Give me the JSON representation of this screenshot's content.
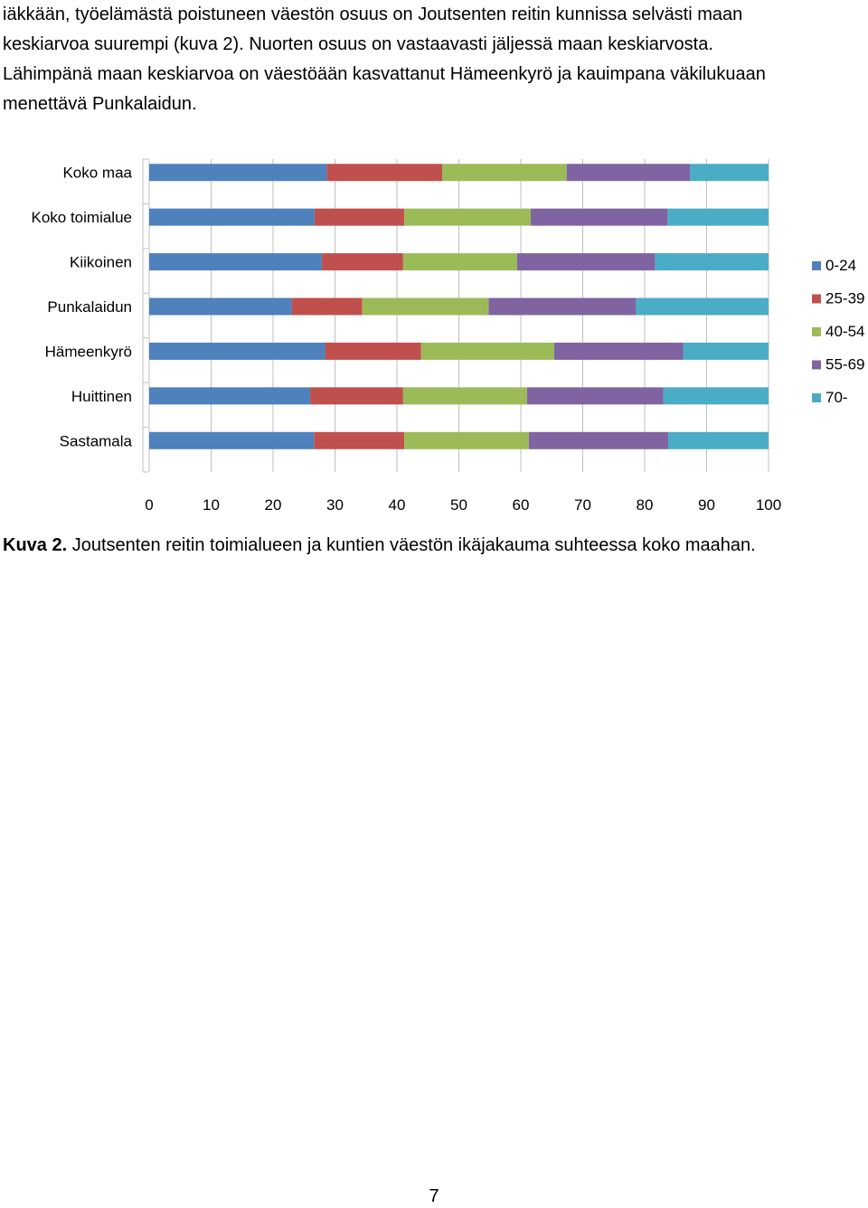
{
  "intro_lines": [
    "iäkkään, työelämästä poistuneen väestön osuus on Joutsenten reitin kunnissa selvästi maan",
    "keskiarvoa suurempi (kuva 2). Nuorten osuus on vastaavasti jäljessä maan keskiarvosta.",
    "Lähimpänä maan keskiarvoa on väestöään kasvattanut Hämeenkyrö ja kauimpana väkilukuaan",
    "menettävä Punkalaidun."
  ],
  "chart_data": {
    "type": "bar",
    "orientation": "horizontal",
    "stacked": true,
    "categories": [
      "Koko maa",
      "Koko toimialue",
      "Kiikoinen",
      "Punkalaidun",
      "Hämeenkyrö",
      "Huittinen",
      "Sastamala"
    ],
    "series": [
      {
        "name": "0-24",
        "color": "#4F81BD",
        "values": [
          28.7,
          26.7,
          27.9,
          23.0,
          28.4,
          26.0,
          26.6
        ]
      },
      {
        "name": "25-39",
        "color": "#C0504D",
        "values": [
          18.6,
          14.5,
          13.1,
          11.4,
          15.5,
          15.0,
          14.6
        ]
      },
      {
        "name": "40-54",
        "color": "#9BBB59",
        "values": [
          20.1,
          20.4,
          18.4,
          20.4,
          21.5,
          20.0,
          20.1
        ]
      },
      {
        "name": "55-69",
        "color": "#8064A2",
        "values": [
          19.9,
          22.1,
          22.3,
          23.8,
          20.8,
          22.0,
          22.5
        ]
      },
      {
        "name": "70-",
        "color": "#4BACC6",
        "values": [
          12.7,
          16.3,
          18.3,
          21.4,
          13.8,
          17.0,
          16.2
        ]
      }
    ],
    "xlim": [
      0,
      100
    ],
    "xticks": [
      "0",
      "10",
      "20",
      "30",
      "40",
      "50",
      "60",
      "70",
      "80",
      "90",
      "100"
    ],
    "grid": true,
    "legend": "right"
  },
  "caption": {
    "label": "Kuva 2.",
    "text": " Joutsenten reitin toimialueen ja kuntien väestön ikäjakauma suhteessa koko maahan."
  },
  "page_number": "7"
}
